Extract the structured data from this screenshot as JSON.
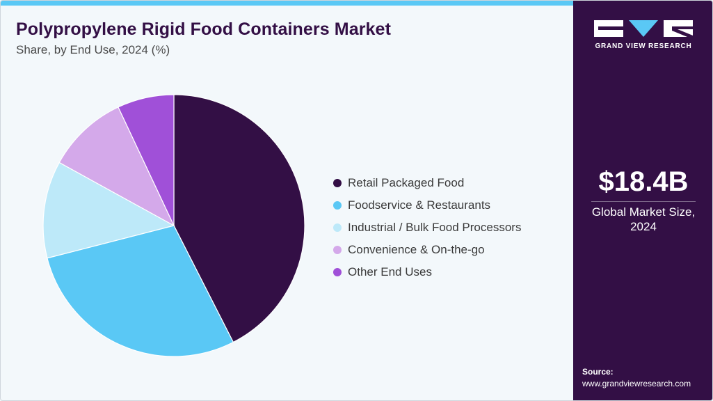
{
  "header": {
    "title": "Polypropylene Rigid Food Containers Market",
    "subtitle": "Share, by End Use, 2024 (%)"
  },
  "chart_data": {
    "type": "pie",
    "title": "Polypropylene Rigid Food Containers Market",
    "subtitle": "Share, by End Use, 2024 (%)",
    "legend_position": "right",
    "categories": [
      "Retail Packaged Food",
      "Foodservice & Restaurants",
      "Industrial / Bulk Food Processors",
      "Convenience & On-the-go",
      "Other End Uses"
    ],
    "values": [
      42.5,
      28.5,
      12.0,
      10.0,
      7.0
    ],
    "colors": [
      "#330f45",
      "#5ac8f5",
      "#bde9f9",
      "#d4a9ea",
      "#a050d8"
    ]
  },
  "side_panel": {
    "logo_text": "GRAND VIEW RESEARCH",
    "market_value": "$18.4B",
    "market_label_line1": "Global Market Size,",
    "market_label_line2": "2024",
    "source_label": "Source:",
    "source_url": "www.grandviewresearch.com"
  }
}
